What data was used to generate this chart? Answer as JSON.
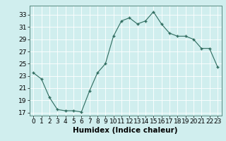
{
  "x": [
    0,
    1,
    2,
    3,
    4,
    5,
    6,
    7,
    8,
    9,
    10,
    11,
    12,
    13,
    14,
    15,
    16,
    17,
    18,
    19,
    20,
    21,
    22,
    23
  ],
  "y": [
    23.5,
    22.5,
    19.5,
    17.5,
    17.3,
    17.3,
    17.1,
    20.5,
    23.5,
    25.0,
    29.5,
    32.0,
    32.5,
    31.5,
    32.0,
    33.5,
    31.5,
    30.0,
    29.5,
    29.5,
    29.0,
    27.5,
    27.5,
    24.5
  ],
  "xlabel": "Humidex (Indice chaleur)",
  "xlim": [
    -0.5,
    23.5
  ],
  "ylim": [
    16.5,
    34.5
  ],
  "yticks": [
    17,
    19,
    21,
    23,
    25,
    27,
    29,
    31,
    33
  ],
  "xticks": [
    0,
    1,
    2,
    3,
    4,
    5,
    6,
    7,
    8,
    9,
    10,
    11,
    12,
    13,
    14,
    15,
    16,
    17,
    18,
    19,
    20,
    21,
    22,
    23
  ],
  "line_color": "#2e6b5e",
  "marker_color": "#2e6b5e",
  "bg_color": "#d0eeee",
  "grid_color": "#b8d8d8",
  "xlabel_fontsize": 7.5,
  "tick_fontsize": 6.5
}
